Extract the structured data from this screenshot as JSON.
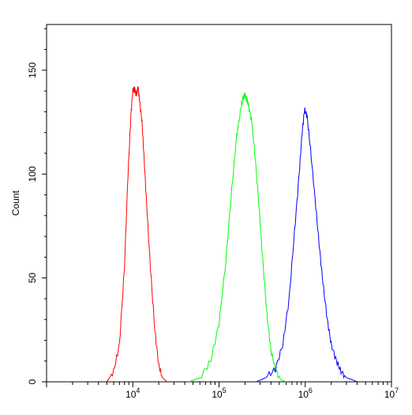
{
  "chart_data": {
    "type": "line",
    "title": "",
    "xlabel": "",
    "ylabel": "Count",
    "x_scale": "log",
    "xlim": [
      1000,
      10000000
    ],
    "ylim": [
      0,
      172
    ],
    "grid": false,
    "y_ticks": [
      0,
      50,
      100,
      150
    ],
    "y_tick_labels": [
      "0",
      "50",
      "100",
      "150"
    ],
    "x_major_ticks": [
      1000,
      10000,
      100000,
      1000000,
      10000000
    ],
    "x_tick_labels": [
      {
        "base": "10",
        "exp": "4",
        "value": 10000
      },
      {
        "base": "10",
        "exp": "5",
        "value": 100000
      },
      {
        "base": "10",
        "exp": "6",
        "value": 1000000
      },
      {
        "base": "10",
        "exp": "7",
        "value": 10000000
      }
    ],
    "series": [
      {
        "color": "#ff0000",
        "x": [
          5000,
          6000,
          7000,
          8000,
          8800,
          9500,
          10000,
          10500,
          11000,
          11500,
          12000,
          12800,
          13500,
          14500,
          16000,
          18000,
          20000,
          22000,
          25000
        ],
        "y": [
          0,
          5,
          18,
          55,
          100,
          128,
          140,
          141,
          138,
          142,
          135,
          125,
          108,
          85,
          55,
          25,
          8,
          2,
          0
        ]
      },
      {
        "color": "#00ff00",
        "x": [
          45000,
          60000,
          80000,
          100000,
          120000,
          140000,
          160000,
          180000,
          190000,
          200000,
          210000,
          220000,
          240000,
          260000,
          290000,
          320000,
          360000,
          400000,
          450000,
          520000,
          600000
        ],
        "y": [
          0,
          2,
          10,
          28,
          58,
          92,
          118,
          132,
          137,
          138,
          136,
          133,
          125,
          110,
          85,
          60,
          32,
          15,
          6,
          1,
          0
        ]
      },
      {
        "color": "#0000ff",
        "x": [
          270000,
          350000,
          450000,
          550000,
          650000,
          750000,
          850000,
          920000,
          980000,
          1050000,
          1150000,
          1300000,
          1450000,
          1600000,
          1800000,
          2000000,
          2300000,
          2600000,
          3000000,
          3500000,
          4000000
        ],
        "y": [
          0,
          2,
          6,
          18,
          40,
          72,
          100,
          120,
          131,
          128,
          112,
          88,
          66,
          48,
          30,
          18,
          10,
          5,
          2,
          1,
          0
        ]
      }
    ]
  }
}
